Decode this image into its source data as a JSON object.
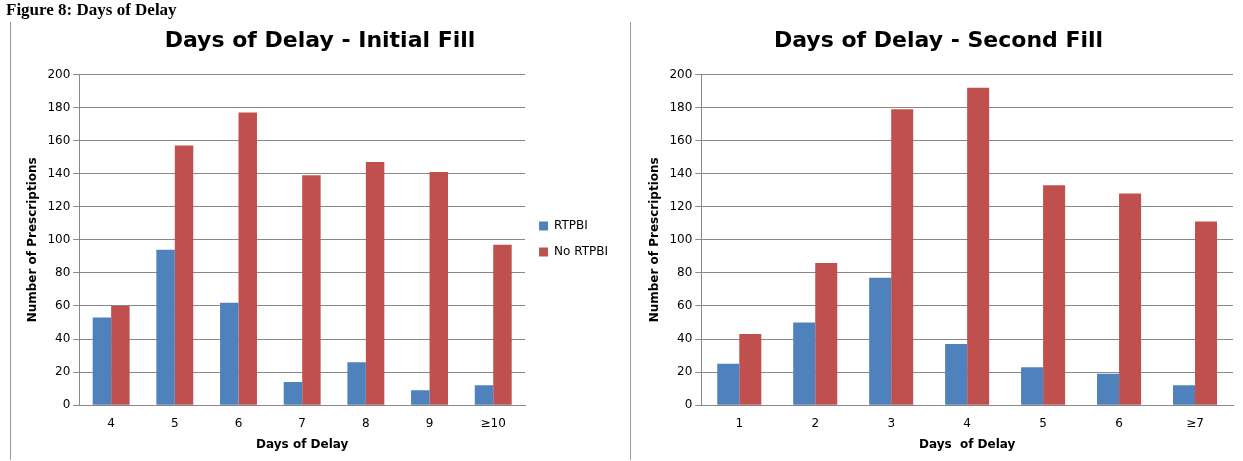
{
  "chart_data": [
    {
      "type": "bar",
      "title": "Days of Delay - Initial Fill",
      "xlabel": "Days of Delay",
      "ylabel": "Number of Prescriptions",
      "annotations": [
        "Figure 8: Days of Delay"
      ],
      "categories": [
        "4",
        "5",
        "6",
        "7",
        "8",
        "9",
        "≥10"
      ],
      "series": [
        {
          "name": "RTPBI",
          "color": "#4f81bd",
          "values": [
            53,
            94,
            62,
            14,
            26,
            9,
            12
          ]
        },
        {
          "name": "No RTPBI",
          "color": "#c0504d",
          "values": [
            60,
            157,
            177,
            139,
            147,
            141,
            97
          ]
        }
      ],
      "ylim": [
        0,
        200
      ],
      "yticks": [
        0,
        20,
        40,
        60,
        80,
        100,
        120,
        140,
        160,
        180,
        200
      ],
      "grid": "y",
      "legend": "right"
    },
    {
      "type": "bar",
      "title": "Days of Delay - Second Fill",
      "xlabel": "Days  of Delay",
      "ylabel": "Number of Prescriptions",
      "categories": [
        "1",
        "2",
        "3",
        "4",
        "5",
        "6",
        "≥7"
      ],
      "series": [
        {
          "color": "#4f81bd",
          "values": [
            25,
            50,
            77,
            37,
            23,
            19,
            12
          ]
        },
        {
          "color": "#c0504d",
          "values": [
            43,
            86,
            179,
            192,
            133,
            128,
            111
          ]
        }
      ],
      "ylim": [
        0,
        200
      ],
      "yticks": [
        0,
        20,
        40,
        60,
        80,
        100,
        120,
        140,
        160,
        180,
        200
      ],
      "grid": "y",
      "legend": false
    }
  ]
}
